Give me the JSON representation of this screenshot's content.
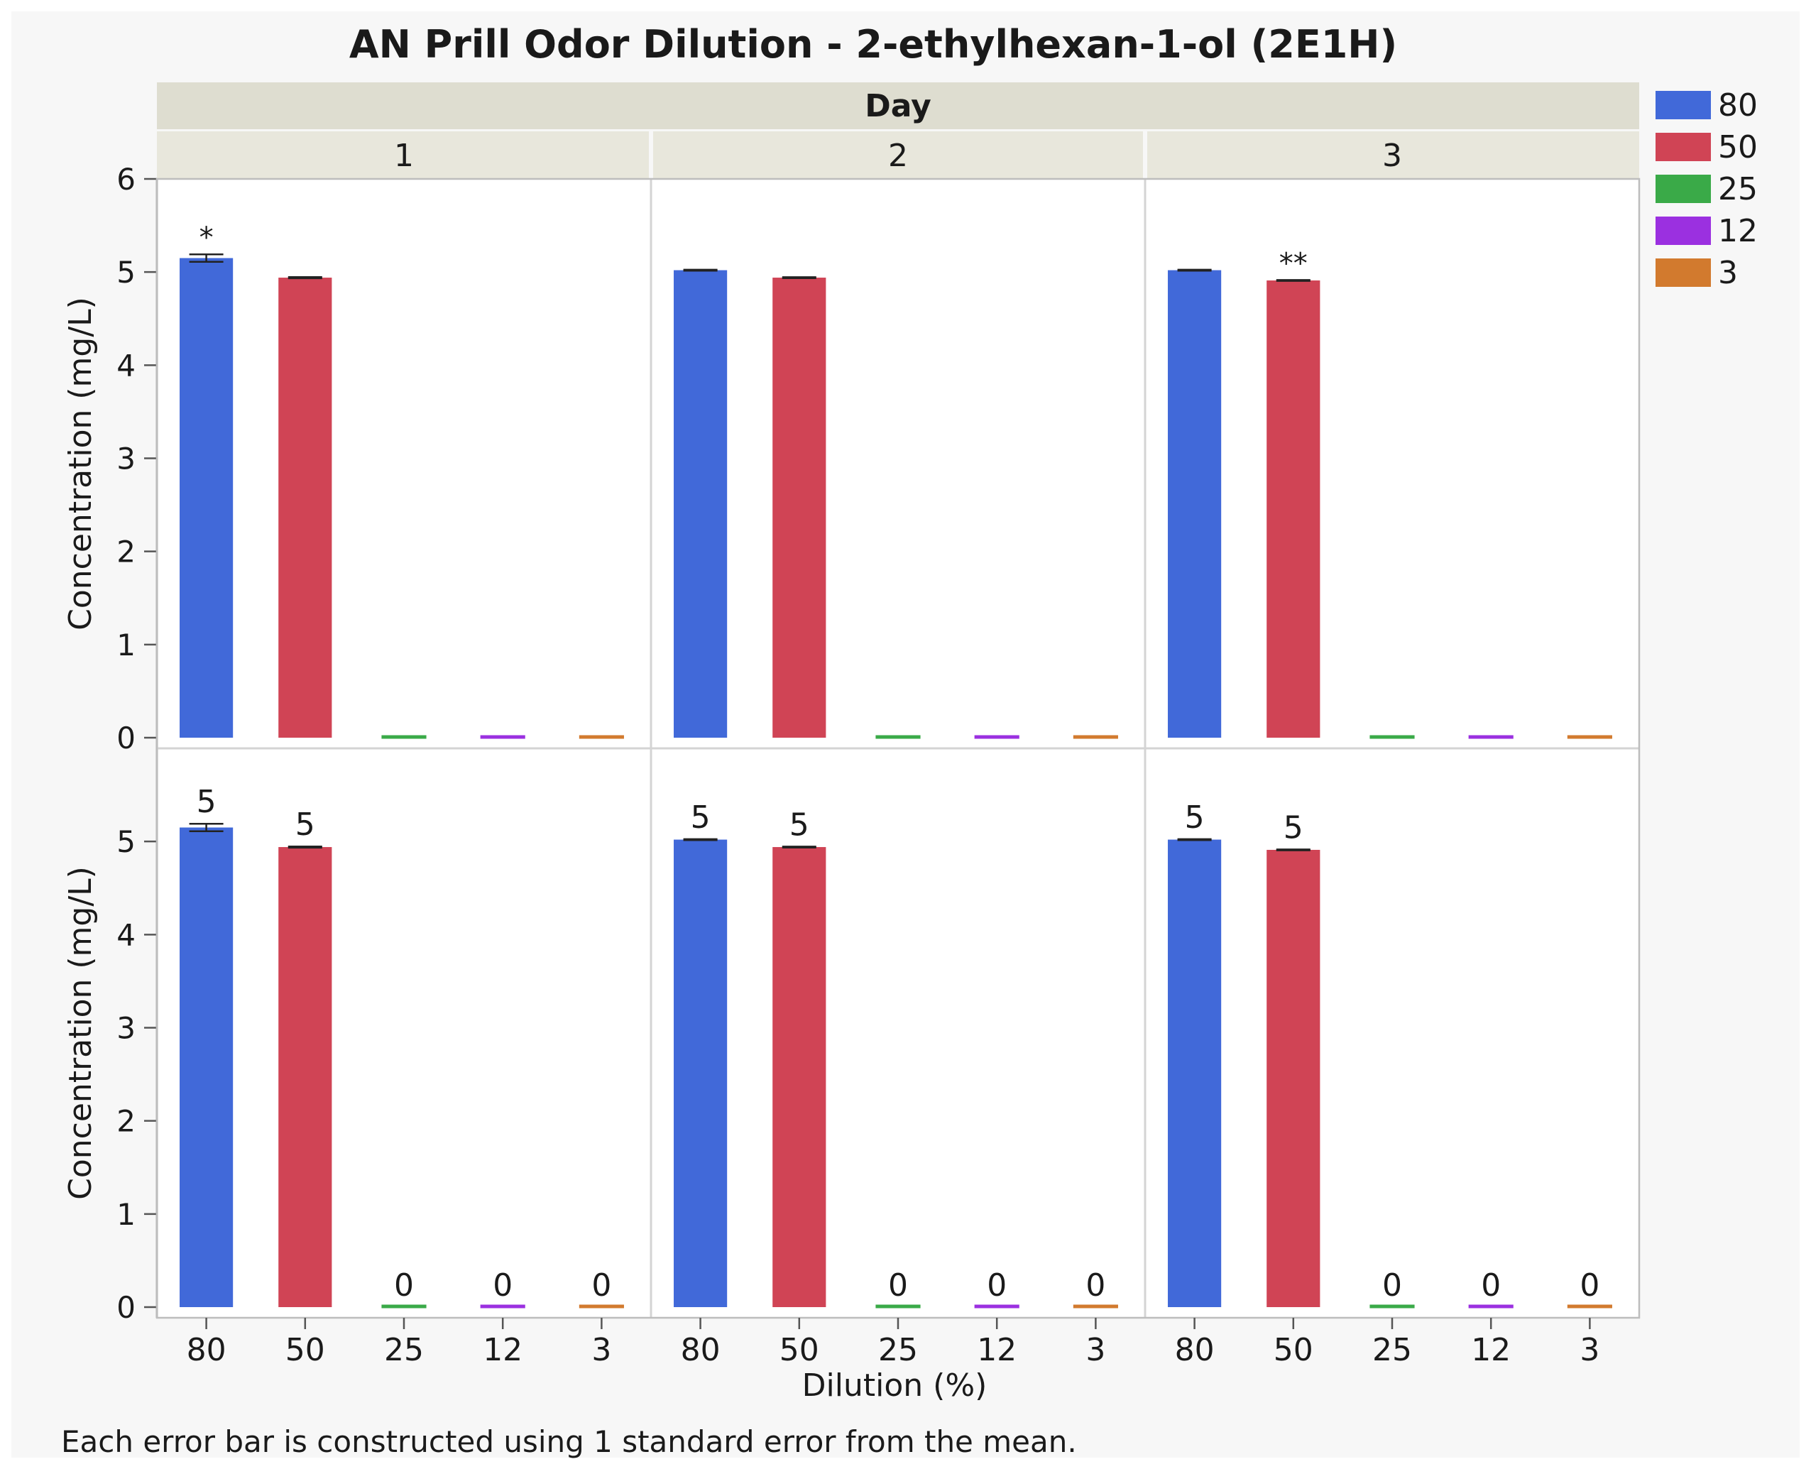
{
  "chart_data": {
    "type": "bar",
    "title": "AN Prill Odor Dilution - 2-ethylhexan-1-ol (2E1H)",
    "facet_title": "Day",
    "facets": [
      "1",
      "2",
      "3"
    ],
    "categories": [
      "80",
      "50",
      "25",
      "12",
      "3"
    ],
    "xlabel": "Dilution (%)",
    "ylabel": "Concentration (mg/L)",
    "ylim": [
      0,
      6
    ],
    "yticks_top": [
      "0",
      "1",
      "2",
      "3",
      "4",
      "5",
      "6"
    ],
    "yticks_bottom": [
      "0",
      "1",
      "2",
      "3",
      "4",
      "5"
    ],
    "legend": [
      {
        "label": "80",
        "color": "#4169d9"
      },
      {
        "label": "50",
        "color": "#d04455"
      },
      {
        "label": "25",
        "color": "#3aaa48"
      },
      {
        "label": "12",
        "color": "#9b30e0"
      },
      {
        "label": "3",
        "color": "#d27a2e"
      }
    ],
    "values": [
      [
        5.15,
        4.94,
        0,
        0,
        0
      ],
      [
        5.02,
        4.94,
        0,
        0,
        0
      ],
      [
        5.02,
        4.91,
        0,
        0,
        0
      ]
    ],
    "errors": [
      [
        0.04,
        0.006,
        0,
        0,
        0
      ],
      [
        0.005,
        0.005,
        0,
        0,
        0
      ],
      [
        0.005,
        0.005,
        0,
        0,
        0
      ]
    ],
    "significance": [
      [
        "*",
        "",
        "",
        "",
        ""
      ],
      [
        "",
        "",
        "",
        "",
        ""
      ],
      [
        "",
        "**",
        "",
        "",
        ""
      ]
    ],
    "data_labels": [
      [
        "5",
        "5",
        "0",
        "0",
        "0"
      ],
      [
        "5",
        "5",
        "0",
        "0",
        "0"
      ],
      [
        "5",
        "5",
        "0",
        "0",
        "0"
      ]
    ],
    "footnote": "Each error bar is constructed using 1 standard error from the mean."
  }
}
